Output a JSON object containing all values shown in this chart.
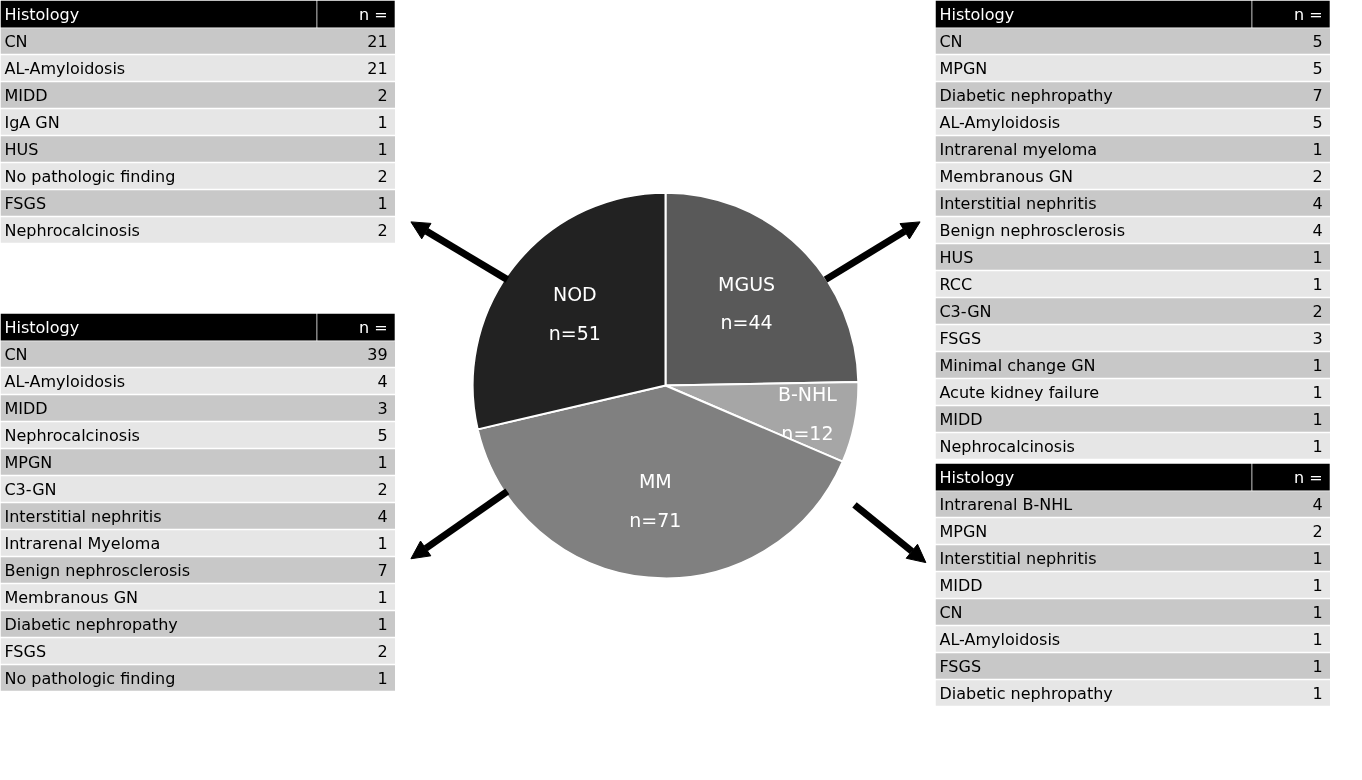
{
  "chart_data": [
    {
      "type": "pie",
      "categories": [
        "MGUS",
        "B-NHL",
        "MM",
        "NOD"
      ],
      "values": [
        44,
        12,
        71,
        51
      ],
      "value_labels": [
        "n=44",
        "n=12",
        "n=71",
        "n=51"
      ],
      "colors": [
        "#595959",
        "#a6a6a6",
        "#808080",
        "#222222"
      ]
    },
    {
      "type": "other",
      "title": "Histology",
      "annotations": [
        "n ="
      ],
      "categories": [
        "CN",
        "AL-Amyloidosis",
        "MIDD",
        "IgA GN",
        "HUS",
        "No pathologic finding",
        "FSGS",
        "Nephrocalcinosis"
      ],
      "values": [
        21,
        21,
        2,
        1,
        1,
        2,
        1,
        2
      ],
      "data_labels": true
    },
    {
      "type": "other",
      "title": "Histology",
      "annotations": [
        "n ="
      ],
      "categories": [
        "CN",
        "AL-Amyloidosis",
        "MIDD",
        "Nephrocalcinosis",
        "MPGN",
        "C3-GN",
        "Interstitial nephritis",
        "Intrarenal Myeloma",
        "Benign nephrosclerosis",
        "Membranous GN",
        "Diabetic nephropathy",
        "FSGS",
        "No pathologic finding"
      ],
      "values": [
        39,
        4,
        3,
        5,
        1,
        2,
        4,
        1,
        7,
        1,
        1,
        2,
        1
      ],
      "data_labels": true
    },
    {
      "type": "other",
      "title": "Histology",
      "annotations": [
        "n ="
      ],
      "categories": [
        "CN",
        "MPGN",
        "Diabetic nephropathy",
        "AL-Amyloidosis",
        "Intrarenal myeloma",
        "Membranous GN",
        "Interstitial nephritis",
        "Benign nephrosclerosis",
        "HUS",
        "RCC",
        "C3-GN",
        "FSGS",
        "Minimal change GN",
        "Acute kidney failure",
        "MIDD",
        "Nephrocalcinosis"
      ],
      "values": [
        5,
        5,
        7,
        5,
        1,
        2,
        4,
        4,
        1,
        1,
        2,
        3,
        1,
        1,
        1,
        1
      ],
      "data_labels": true
    },
    {
      "type": "other",
      "title": "Histology",
      "annotations": [
        "n ="
      ],
      "categories": [
        "Intrarenal B-NHL",
        "MPGN",
        "Interstitial nephritis",
        "MIDD",
        "CN",
        "AL-Amyloidosis",
        "FSGS",
        "Diabetic nephropathy"
      ],
      "values": [
        4,
        2,
        1,
        1,
        1,
        1,
        1,
        1
      ],
      "data_labels": true
    }
  ]
}
